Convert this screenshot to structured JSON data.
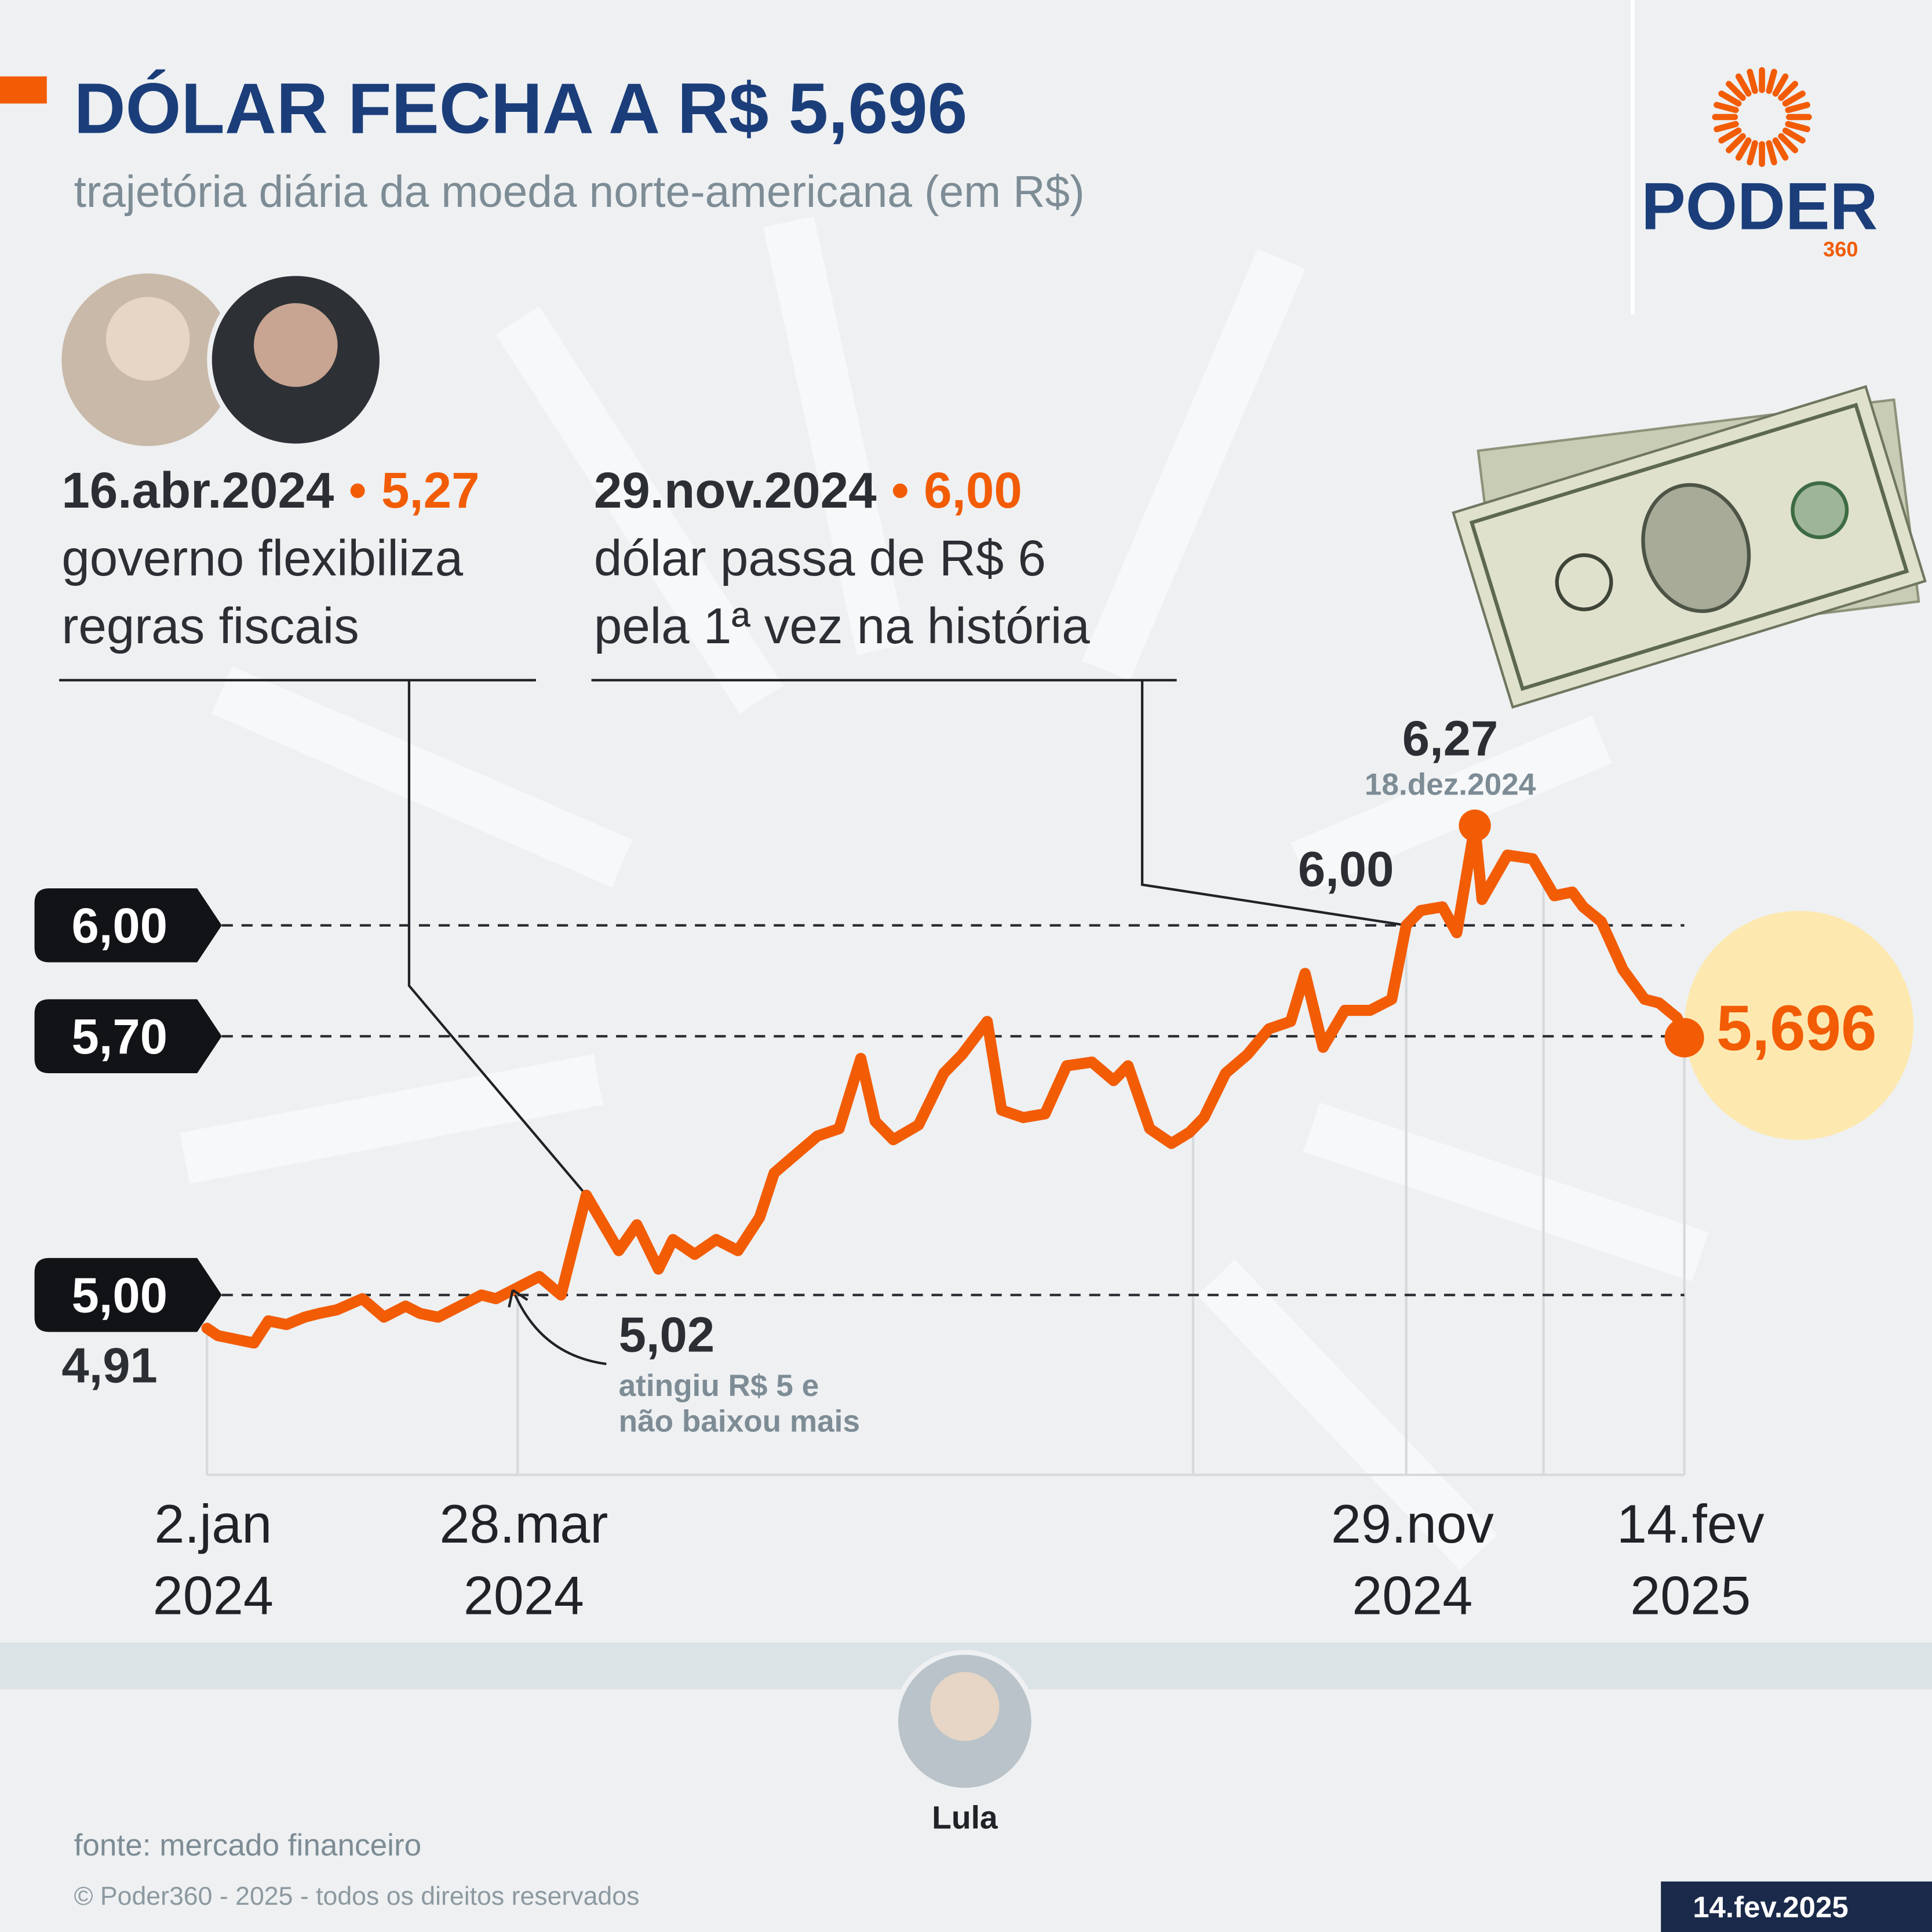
{
  "title": "DÓLAR FECHA A R$ 5,696",
  "subtitle": "trajetória diária da moeda norte-americana (em R$)",
  "brand": {
    "name": "PODER",
    "number": "360"
  },
  "photo_caption": "Lula",
  "source": "fonte: mercado financeiro",
  "copyright": "© Poder360 - 2025 - todos os direitos reservados",
  "date": "14.fev.2025",
  "chart_data": {
    "type": "line",
    "color": "#f25c05",
    "x": [
      "2024-01-02",
      "2024-01-05",
      "2024-01-10",
      "2024-01-15",
      "2024-01-19",
      "2024-01-24",
      "2024-01-29",
      "2024-02-02",
      "2024-02-07",
      "2024-02-14",
      "2024-02-20",
      "2024-02-26",
      "2024-03-01",
      "2024-03-06",
      "2024-03-12",
      "2024-03-18",
      "2024-03-22",
      "2024-03-28",
      "2024-04-03",
      "2024-04-09",
      "2024-04-16",
      "2024-04-19",
      "2024-04-25",
      "2024-04-30",
      "2024-05-06",
      "2024-05-10",
      "2024-05-16",
      "2024-05-22",
      "2024-05-28",
      "2024-06-03",
      "2024-06-07",
      "2024-06-13",
      "2024-06-19",
      "2024-06-25",
      "2024-07-01",
      "2024-07-05",
      "2024-07-10",
      "2024-07-17",
      "2024-07-24",
      "2024-07-29",
      "2024-08-05",
      "2024-08-09",
      "2024-08-15",
      "2024-08-21",
      "2024-08-27",
      "2024-09-03",
      "2024-09-09",
      "2024-09-13",
      "2024-09-19",
      "2024-09-25",
      "2024-09-30",
      "2024-10-04",
      "2024-10-10",
      "2024-10-16",
      "2024-10-22",
      "2024-10-28",
      "2024-11-01",
      "2024-11-06",
      "2024-11-12",
      "2024-11-19",
      "2024-11-25",
      "2024-11-29",
      "2024-12-03",
      "2024-12-09",
      "2024-12-13",
      "2024-12-18",
      "2024-12-20",
      "2024-12-27",
      "2025-01-03",
      "2025-01-09",
      "2025-01-14",
      "2025-01-17",
      "2025-01-22",
      "2025-01-28",
      "2025-02-03",
      "2025-02-07",
      "2025-02-12",
      "2025-02-14"
    ],
    "values": [
      4.91,
      4.89,
      4.88,
      4.87,
      4.93,
      4.92,
      4.94,
      4.95,
      4.96,
      4.99,
      4.94,
      4.97,
      4.95,
      4.94,
      4.97,
      5.0,
      4.99,
      5.02,
      5.05,
      5.0,
      5.27,
      5.22,
      5.12,
      5.19,
      5.07,
      5.15,
      5.11,
      5.15,
      5.12,
      5.21,
      5.33,
      5.38,
      5.43,
      5.45,
      5.64,
      5.47,
      5.42,
      5.46,
      5.6,
      5.65,
      5.74,
      5.5,
      5.48,
      5.49,
      5.62,
      5.63,
      5.58,
      5.62,
      5.45,
      5.41,
      5.44,
      5.48,
      5.6,
      5.65,
      5.72,
      5.74,
      5.87,
      5.67,
      5.77,
      5.77,
      5.8,
      6.0,
      6.04,
      6.05,
      5.98,
      6.27,
      6.07,
      6.19,
      6.18,
      6.08,
      6.09,
      6.05,
      6.01,
      5.88,
      5.8,
      5.79,
      5.75,
      5.696
    ],
    "xlim": [
      "2024-01-02",
      "2025-02-14"
    ],
    "xticks": [
      {
        "value": "2024-01-02",
        "label": [
          "2.jan",
          "2024"
        ]
      },
      {
        "value": "2024-03-28",
        "label": [
          "28.mar",
          "2024"
        ]
      },
      {
        "value": "2024-10-01",
        "label": null
      },
      {
        "value": "2024-11-29",
        "label": [
          "29.nov",
          "2024"
        ]
      },
      {
        "value": "2025-01-06",
        "label": null
      },
      {
        "value": "2025-02-14",
        "label": [
          "14.fev",
          "2025"
        ]
      }
    ],
    "ylim": [
      4.5,
      6.5
    ],
    "yticks": [
      {
        "value": 5.0,
        "label": "5,00"
      },
      {
        "value": 5.7,
        "label": "5,70"
      },
      {
        "value": 6.0,
        "label": "6,00"
      }
    ],
    "annotations": [
      {
        "x": "2024-04-16",
        "value": 5.27,
        "date_label": "16.abr.2024",
        "bullet": "•",
        "value_label": "5,27",
        "text": [
          "governo flexibiliza",
          "regras fiscais"
        ]
      },
      {
        "x": "2024-11-29",
        "value": 6.0,
        "date_label": "29.nov.2024",
        "bullet": "•",
        "value_label": "6,00",
        "text": [
          "dólar passa de R$ 6",
          "pela 1ª vez na história"
        ]
      }
    ],
    "point_labels": [
      {
        "x": "2024-01-02",
        "value": 4.91,
        "label": "4,91"
      },
      {
        "x": "2024-03-28",
        "value": 5.02,
        "label": "5,02",
        "note": [
          "atingiu R$ 5 e",
          "não baixou mais"
        ]
      },
      {
        "x": "2024-11-29",
        "value": 6.0,
        "label": "6,00"
      },
      {
        "x": "2024-12-18",
        "value": 6.27,
        "label": "6,27",
        "note": [
          "18.dez.2024"
        ]
      },
      {
        "x": "2025-02-14",
        "value": 5.696,
        "label": "5,696"
      }
    ]
  }
}
